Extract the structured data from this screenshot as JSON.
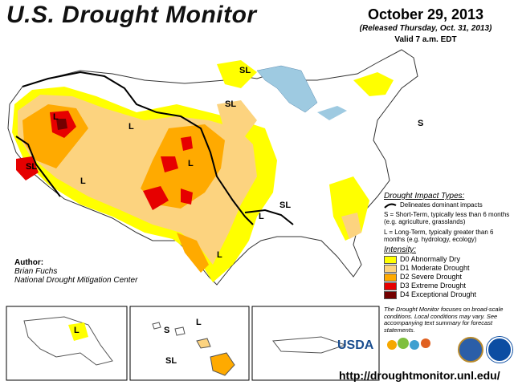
{
  "header": {
    "title": "U.S. Drought Monitor",
    "date": "October 29, 2013",
    "released": "(Released Thursday, Oct. 31, 2013)",
    "valid": "Valid 7 a.m. EDT"
  },
  "author": {
    "heading": "Author:",
    "name": "Brian Fuchs",
    "org": "National Drought Mitigation Center"
  },
  "impact_types": {
    "heading": "Drought Impact Types:",
    "line_desc": "Delineates dominant impacts",
    "short_term": "S = Short-Term, typically less than 6 months (e.g. agriculture, grasslands)",
    "long_term": "L = Long-Term, typically greater than 6 months (e.g. hydrology, ecology)"
  },
  "intensity": {
    "heading": "Intensity:",
    "items": [
      {
        "label": "D0 Abnormally Dry",
        "color": "#ffff00"
      },
      {
        "label": "D1 Moderate Drought",
        "color": "#fcd37f"
      },
      {
        "label": "D2 Severe Drought",
        "color": "#ffaa00"
      },
      {
        "label": "D3 Extreme Drought",
        "color": "#e60000"
      },
      {
        "label": "D4 Exceptional Drought",
        "color": "#730000"
      }
    ]
  },
  "note": "The Drought Monitor focuses on broad-scale conditions. Local conditions may vary. See accompanying text summary for forecast statements.",
  "map_labels": {
    "sl_1": "SL",
    "sl_2": "SL",
    "sl_3": "SL",
    "sl_4": "SL",
    "l_1": "L",
    "l_2": "L",
    "l_3": "L",
    "l_4": "L",
    "l_5": "L",
    "l_6": "L",
    "s_1": "S",
    "alaska_l": "L",
    "hawaii_s": "S",
    "hawaii_l": "L",
    "hawaii_sl": "SL"
  },
  "logos": {
    "usda": "USDA",
    "ndmc": "National Drought Mitigation Center"
  },
  "url": "http://droughtmonitor.unl.edu/",
  "colors": {
    "water": "#9ecae1",
    "land": "#ffffff",
    "d0": "#ffff00",
    "d1": "#fcd37f",
    "d2": "#ffaa00",
    "d3": "#e60000",
    "d4": "#730000"
  }
}
